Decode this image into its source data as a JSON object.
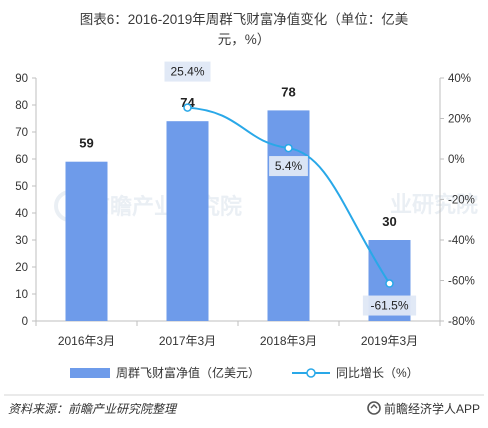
{
  "chart_data": {
    "type": "bar+line",
    "title": "图表6：2016-2019年周群飞财富净值变化（单位：亿美元，%）",
    "categories": [
      "2016年3月",
      "2017年3月",
      "2018年3月",
      "2019年3月"
    ],
    "series": [
      {
        "name": "周群飞财富净值（亿美元）",
        "type": "bar",
        "axis": "left",
        "values": [
          59,
          74,
          78,
          30
        ],
        "color": "#6e9bea"
      },
      {
        "name": "同比增长（%）",
        "type": "line",
        "axis": "right",
        "values": [
          null,
          25.4,
          5.4,
          -61.5
        ],
        "labels": [
          "",
          "25.4%",
          "5.4%",
          "-61.5%"
        ],
        "color": "#29a8e8"
      }
    ],
    "left_axis": {
      "min": 0,
      "max": 90,
      "step": 10,
      "ticks": [
        "0",
        "10",
        "20",
        "30",
        "40",
        "50",
        "60",
        "70",
        "80",
        "90"
      ]
    },
    "right_axis": {
      "min": -80,
      "max": 40,
      "step": 20,
      "ticks": [
        "-80%",
        "-60%",
        "-40%",
        "-20%",
        "0%",
        "20%",
        "40%"
      ]
    },
    "legend_position": "bottom",
    "grid": false
  },
  "source_text": "资料来源：前瞻产业研究院整理",
  "watermark_text": "前瞻产业研究院",
  "brand_text": "前瞻经济学人APP"
}
